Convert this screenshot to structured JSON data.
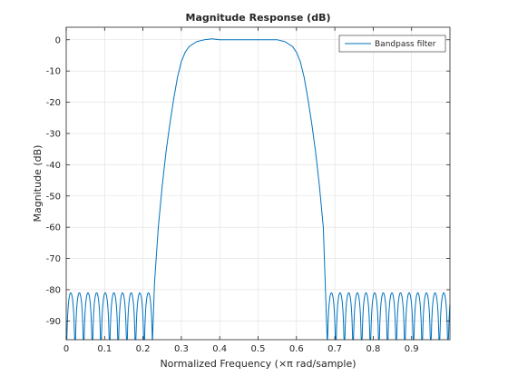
{
  "chart_data": {
    "type": "line",
    "title": "Magnitude Response (dB)",
    "xlabel": "Normalized Frequency (×π rad/sample)",
    "ylabel": "Magnitude (dB)",
    "xlim": [
      0,
      1
    ],
    "ylim": [
      -96,
      4
    ],
    "xticks": [
      0,
      0.1,
      0.2,
      0.3,
      0.4,
      0.5,
      0.6,
      0.7,
      0.8,
      0.9
    ],
    "xtick_labels": [
      "0",
      "0.1",
      "0.2",
      "0.3",
      "0.4",
      "0.5",
      "0.6",
      "0.7",
      "0.8",
      "0.9"
    ],
    "yticks": [
      0,
      -10,
      -20,
      -30,
      -40,
      -50,
      -60,
      -70,
      -80,
      -90
    ],
    "ytick_labels": [
      "0",
      "-10",
      "-20",
      "-30",
      "-40",
      "-50",
      "-60",
      "-70",
      "-80",
      "-90"
    ],
    "grid": true,
    "legend_position": "top-right",
    "series": [
      {
        "name": "Bandpass filter",
        "color": "#0072bd",
        "passband": [
          0.35,
          0.55
        ],
        "transition_edges": [
          0.225,
          0.68
        ],
        "stopband_ripple_peak_db": -81,
        "stopband_null_db": -96,
        "stopband_null_spacing": 0.0225,
        "envelope_points": [
          [
            0.225,
            -96
          ],
          [
            0.23,
            -78
          ],
          [
            0.24,
            -60
          ],
          [
            0.25,
            -47
          ],
          [
            0.26,
            -36
          ],
          [
            0.27,
            -27
          ],
          [
            0.28,
            -19
          ],
          [
            0.29,
            -12
          ],
          [
            0.3,
            -7
          ],
          [
            0.31,
            -4
          ],
          [
            0.32,
            -2.2
          ],
          [
            0.34,
            -0.6
          ],
          [
            0.36,
            0
          ],
          [
            0.38,
            0.3
          ],
          [
            0.4,
            0
          ],
          [
            0.55,
            0
          ],
          [
            0.57,
            -0.6
          ],
          [
            0.59,
            -2.2
          ],
          [
            0.6,
            -4
          ],
          [
            0.61,
            -7
          ],
          [
            0.62,
            -12
          ],
          [
            0.63,
            -19
          ],
          [
            0.64,
            -27
          ],
          [
            0.65,
            -36
          ],
          [
            0.66,
            -47
          ],
          [
            0.67,
            -60
          ],
          [
            0.675,
            -78
          ],
          [
            0.68,
            -96
          ]
        ]
      }
    ]
  }
}
